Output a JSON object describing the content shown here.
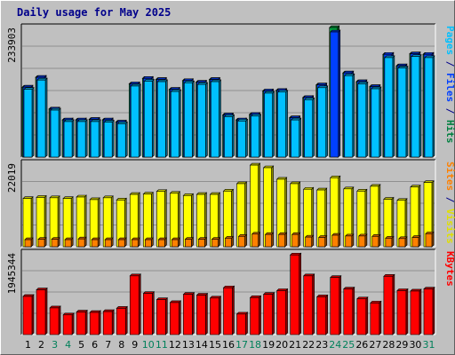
{
  "window": {
    "title": "Daily usage for May 2025"
  },
  "chart_data": {
    "type": "bar",
    "title": "Daily usage for May 2025",
    "categories": [
      "1",
      "2",
      "3",
      "4",
      "5",
      "6",
      "7",
      "8",
      "9",
      "10",
      "11",
      "12",
      "13",
      "14",
      "15",
      "16",
      "17",
      "18",
      "19",
      "20",
      "21",
      "22",
      "23",
      "24",
      "25",
      "26",
      "27",
      "28",
      "29",
      "30",
      "31"
    ],
    "weekend_days": [
      "3",
      "4",
      "10",
      "11",
      "17",
      "18",
      "24",
      "25",
      "31"
    ],
    "panels": [
      {
        "name": "hits-files-pages",
        "scale_max_label": "233903",
        "ylim": [
          0,
          233903
        ],
        "right_label_parts": [
          {
            "text": "Pages",
            "color": "#00c0ff"
          },
          {
            "text": " / ",
            "color": "#00008b"
          },
          {
            "text": "Files",
            "color": "#0040ff"
          },
          {
            "text": " / ",
            "color": "#00008b"
          },
          {
            "text": "Hits",
            "color": "#008040"
          }
        ],
        "series": [
          {
            "name": "Hits",
            "color": "#00a040",
            "values": [
              128000,
              146000,
              88000,
              68000,
              68000,
              69000,
              68000,
              64000,
              134000,
              144000,
              142000,
              124000,
              140000,
              137000,
              142000,
              77000,
              68000,
              78000,
              121000,
              122000,
              72000,
              109000,
              132000,
              237000,
              154000,
              138000,
              129000,
              188000,
              167000,
              189000,
              188000
            ]
          },
          {
            "name": "Files",
            "color": "#0040ff",
            "values": [
              128000,
              146000,
              88000,
              68000,
              68000,
              69000,
              68000,
              64000,
              134000,
              144000,
              142000,
              124000,
              140000,
              137000,
              142000,
              77000,
              68000,
              78000,
              121000,
              122000,
              72000,
              109000,
              132000,
              229000,
              154000,
              138000,
              129000,
              188000,
              167000,
              189000,
              188000
            ]
          },
          {
            "name": "Pages",
            "color": "#00c0ff",
            "values": [
              124000,
              141000,
              86000,
              65000,
              65000,
              65000,
              64000,
              61000,
              130000,
              139000,
              138000,
              120000,
              136000,
              133000,
              138000,
              74000,
              66000,
              75000,
              117000,
              119000,
              68000,
              105000,
              127000,
              0,
              149000,
              134000,
              125000,
              182000,
              163000,
              184000,
              182000
            ]
          }
        ]
      },
      {
        "name": "visits-sites",
        "scale_max_label": "22019",
        "ylim": [
          0,
          22019
        ],
        "right_label_parts": [
          {
            "text": "Sites",
            "color": "#ff8000"
          },
          {
            "text": " / ",
            "color": "#00008b"
          },
          {
            "text": "Visits",
            "color": "#e0e000"
          }
        ],
        "series": [
          {
            "name": "Visits",
            "color": "#ffff00",
            "values": [
              13000,
              13300,
              13200,
              13000,
              13400,
              12700,
              13200,
              12600,
              14100,
              14200,
              14900,
              14400,
              13800,
              14100,
              14100,
              15000,
              17000,
              22000,
              21300,
              18200,
              17000,
              15500,
              15300,
              18600,
              15600,
              15000,
              16300,
              12800,
              12500,
              16100,
              17300
            ]
          },
          {
            "name": "Sites",
            "color": "#ff8000",
            "values": [
              1900,
              2000,
              2000,
              1900,
              2100,
              1900,
              1900,
              1900,
              1900,
              1900,
              1900,
              1900,
              2000,
              2000,
              2000,
              2300,
              2800,
              3400,
              3300,
              3300,
              3300,
              2600,
              2500,
              3100,
              2900,
              2900,
              2800,
              2300,
              2200,
              2500,
              3500
            ]
          }
        ]
      },
      {
        "name": "kbytes",
        "scale_max_label": "1945344",
        "ylim": [
          0,
          1945344
        ],
        "right_label_parts": [
          {
            "text": "KBytes",
            "color": "#ff0000"
          }
        ],
        "series": [
          {
            "name": "KBytes",
            "color": "#ff0000",
            "values": [
              930000,
              1090000,
              650000,
              480000,
              550000,
              540000,
              560000,
              640000,
              1430000,
              1000000,
              850000,
              780000,
              980000,
              960000,
              890000,
              1140000,
              500000,
              900000,
              980000,
              1070000,
              1940000,
              1430000,
              920000,
              1390000,
              1110000,
              870000,
              770000,
              1420000,
              1070000,
              1060000,
              1110000
            ]
          }
        ]
      }
    ]
  }
}
